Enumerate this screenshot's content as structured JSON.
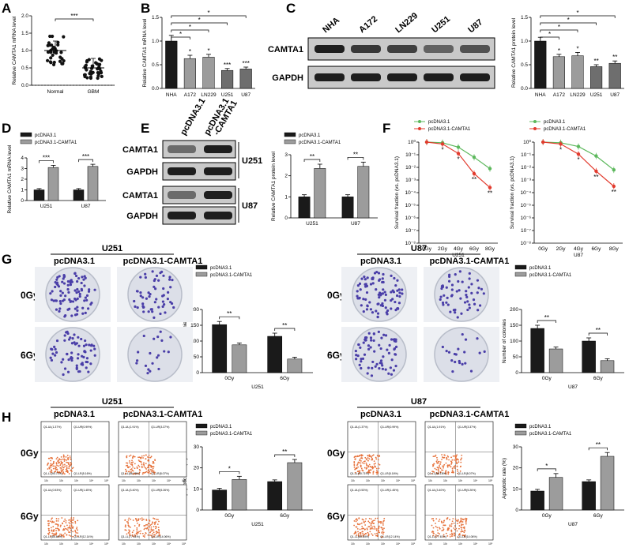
{
  "panels": {
    "A": "A",
    "B": "B",
    "C": "C",
    "D": "D",
    "E": "E",
    "F": "F",
    "G": "G",
    "H": "H"
  },
  "colors": {
    "dark": "#1a1a1a",
    "gray": "#9c9c9c",
    "dgray": "#6e6e6e",
    "green": "#5cb85c",
    "red": "#e23b2e",
    "plate": "#dcdfe8",
    "colony": "#4a3ea8",
    "flow": "#e6713a"
  },
  "chart_data": [
    {
      "id": "A",
      "type": "scatter",
      "ylabel": "Relative CAMTA1 mRNA level",
      "categories": [
        "Normal",
        "GBM"
      ],
      "means": [
        1.0,
        0.5
      ],
      "yticks": [
        "0.0",
        "0.5",
        "1.0",
        "1.5",
        "2.0"
      ],
      "ylim": [
        0,
        2.0
      ],
      "annotations": [
        "***"
      ]
    },
    {
      "id": "B",
      "type": "bar",
      "ylabel": "Relative CAMTA1 mRNA level",
      "categories": [
        "NHA",
        "A172",
        "LN229",
        "U251",
        "U87"
      ],
      "values": [
        1.0,
        0.63,
        0.66,
        0.38,
        0.41
      ],
      "errors": [
        0.12,
        0.07,
        0.06,
        0.04,
        0.04
      ],
      "yticks": [
        "0.0",
        "0.5",
        "1.0",
        "1.5"
      ],
      "ylim": [
        0,
        1.5
      ],
      "annotations": [
        "*",
        "*",
        "*",
        "*",
        "*",
        "***",
        "***"
      ]
    },
    {
      "id": "C",
      "type": "bar",
      "ylabel": "Relative CAMTA1 protein level",
      "categories": [
        "NHA",
        "A172",
        "LN229",
        "U251",
        "U87"
      ],
      "values": [
        1.0,
        0.67,
        0.69,
        0.46,
        0.53
      ],
      "errors": [
        0.08,
        0.05,
        0.07,
        0.04,
        0.05
      ],
      "yticks": [
        "0.0",
        "0.5",
        "1.0",
        "1.5"
      ],
      "ylim": [
        0,
        1.5
      ],
      "annotations": [
        "*",
        "*",
        "*",
        "*",
        "*",
        "**",
        "**"
      ]
    },
    {
      "id": "D",
      "type": "bar",
      "ylabel": "Relative CAMTA1 mRNA level",
      "categories": [
        "U251",
        "U87"
      ],
      "series": [
        {
          "name": "pcDNA3.1",
          "values": [
            1.0,
            1.0
          ]
        },
        {
          "name": "pcDNA3.1-CAMTA1",
          "values": [
            3.1,
            3.2
          ]
        }
      ],
      "yticks": [
        "0",
        "1",
        "2",
        "3",
        "4"
      ],
      "ylim": [
        0,
        4
      ],
      "annotations": [
        "***",
        "***"
      ]
    },
    {
      "id": "E",
      "type": "bar",
      "ylabel": "Relative CAMTA1 protein level",
      "categories": [
        "U251",
        "U87"
      ],
      "series": [
        {
          "name": "pcDNA3.1",
          "values": [
            1.0,
            1.0
          ]
        },
        {
          "name": "pcDNA3.1-CAMTA1",
          "values": [
            2.35,
            2.45
          ]
        }
      ],
      "yticks": [
        "0",
        "1",
        "2",
        "3"
      ],
      "ylim": [
        0,
        3
      ],
      "annotations": [
        "**",
        "**"
      ]
    },
    {
      "id": "F1",
      "type": "line",
      "ylabel": "Survival fraction (vs. pcDNA3.1)",
      "xlabel": "U251",
      "x": [
        "0Gy",
        "2Gy",
        "4Gy",
        "6Gy",
        "8Gy"
      ],
      "series": [
        {
          "name": "pcDNA3.1",
          "values": [
            0,
            -0.05,
            -0.4,
            -1.2,
            -2.1
          ]
        },
        {
          "name": "pcDNA3.1-CAMTA1",
          "values": [
            0,
            -0.15,
            -0.9,
            -2.5,
            -3.6
          ]
        }
      ],
      "yticks": [
        "10⁰",
        "10⁻¹",
        "10⁻²",
        "10⁻³",
        "10⁻⁴",
        "10⁻⁵",
        "10⁻⁶",
        "10⁻⁷",
        "10⁻⁸"
      ],
      "scale": "log",
      "annotations": [
        "*",
        "*",
        "**",
        "**"
      ]
    },
    {
      "id": "F2",
      "type": "line",
      "ylabel": "Survival fraction (vs. pcDNA3.1)",
      "xlabel": "U87",
      "x": [
        "0Gy",
        "2Gy",
        "4Gy",
        "6Gy",
        "8Gy"
      ],
      "series": [
        {
          "name": "pcDNA3.1",
          "values": [
            0,
            -0.05,
            -0.35,
            -1.1,
            -2.2
          ]
        },
        {
          "name": "pcDNA3.1-CAMTA1",
          "values": [
            0,
            -0.15,
            -0.95,
            -2.3,
            -3.5
          ]
        }
      ],
      "yticks": [
        "10⁰",
        "10⁻¹",
        "10⁻²",
        "10⁻³",
        "10⁻⁴",
        "10⁻⁵",
        "10⁻⁶",
        "10⁻⁷",
        "10⁻⁸"
      ],
      "scale": "log",
      "annotations": [
        "*",
        "*",
        "**",
        "**"
      ]
    },
    {
      "id": "G1",
      "type": "bar",
      "ylabel": "Number of colonies",
      "xlabel": "U251",
      "categories": [
        "0Gy",
        "6Gy"
      ],
      "series": [
        {
          "name": "pcDNA3.1",
          "values": [
            152,
            115
          ]
        },
        {
          "name": "pcDNA3.1-CAMTA1",
          "values": [
            88,
            43
          ]
        }
      ],
      "yticks": [
        "0",
        "50",
        "100",
        "150",
        "200"
      ],
      "ylim": [
        0,
        200
      ],
      "annotations": [
        "**",
        "**"
      ]
    },
    {
      "id": "G2",
      "type": "bar",
      "ylabel": "Number of colonies",
      "xlabel": "U87",
      "categories": [
        "0Gy",
        "6Gy"
      ],
      "series": [
        {
          "name": "pcDNA3.1",
          "values": [
            140,
            100
          ]
        },
        {
          "name": "pcDNA3.1-CAMTA1",
          "values": [
            75,
            38
          ]
        }
      ],
      "yticks": [
        "0",
        "50",
        "100",
        "150",
        "200"
      ],
      "ylim": [
        0,
        200
      ],
      "annotations": [
        "**",
        "**"
      ]
    },
    {
      "id": "H1",
      "type": "bar",
      "ylabel": "Apoptotic rate (%)",
      "xlabel": "U251",
      "categories": [
        "0Gy",
        "6Gy"
      ],
      "series": [
        {
          "name": "pcDNA3.1",
          "values": [
            9.5,
            13.5
          ]
        },
        {
          "name": "pcDNA3.1-CAMTA1",
          "values": [
            14.5,
            22.5
          ]
        }
      ],
      "yticks": [
        "0",
        "10",
        "20",
        "30"
      ],
      "ylim": [
        0,
        30
      ],
      "annotations": [
        "*",
        "**"
      ]
    },
    {
      "id": "H2",
      "type": "bar",
      "ylabel": "Apoptotic rate (%)",
      "xlabel": "U87",
      "categories": [
        "0Gy",
        "6Gy"
      ],
      "series": [
        {
          "name": "pcDNA3.1",
          "values": [
            9,
            13.5
          ]
        },
        {
          "name": "pcDNA3.1-CAMTA1",
          "values": [
            15.5,
            25.5
          ]
        }
      ],
      "yticks": [
        "0",
        "10",
        "20",
        "30"
      ],
      "ylim": [
        0,
        30
      ],
      "annotations": [
        "*",
        "**"
      ]
    }
  ],
  "blots": {
    "C": {
      "lanes": [
        "NHA",
        "A172",
        "LN229",
        "U251",
        "U87"
      ],
      "rows": [
        "CAMTA1",
        "GAPDH"
      ]
    },
    "E": {
      "lanes": [
        "pcDNA3.1",
        "pcDNA3.1\n-CAMTA1"
      ],
      "rows": [
        "CAMTA1",
        "GAPDH",
        "CAMTA1",
        "GAPDH"
      ],
      "cells": [
        "U251",
        "U87"
      ]
    }
  },
  "images": {
    "cells": [
      "U251",
      "U87"
    ],
    "columns": [
      "pcDNA3.1",
      "pcDNA3.1-CAMTA1"
    ],
    "doses": [
      "0Gy",
      "6Gy"
    ],
    "flow_quadrants_0": [
      "Q1-UL(1.37%)",
      "Q1-UR(0.99%)",
      "Q1-LL(90.71%)",
      "Q1-LR(5.16%)"
    ],
    "flow_quadrants_1": [
      "Q1-UL(1.91%)",
      "Q1-UR(3.37%)",
      "Q1-LL(86.18%)",
      "Q1-LR(8.07%)"
    ],
    "flow_quadrants_2": [
      "Q1-UL(0.53%)",
      "Q1-UR(1.45%)",
      "Q1-LL(85.84%)",
      "Q1-LR(12.14%)"
    ],
    "flow_quadrants_3": [
      "Q1-UL(3.40%)",
      "Q1-UR(5.26%)",
      "Q1-LL(77.61%)",
      "Q1-LR(14.06%)"
    ],
    "flow_axis": [
      "10¹",
      "10²",
      "10³",
      "10⁴",
      "10⁵"
    ]
  }
}
